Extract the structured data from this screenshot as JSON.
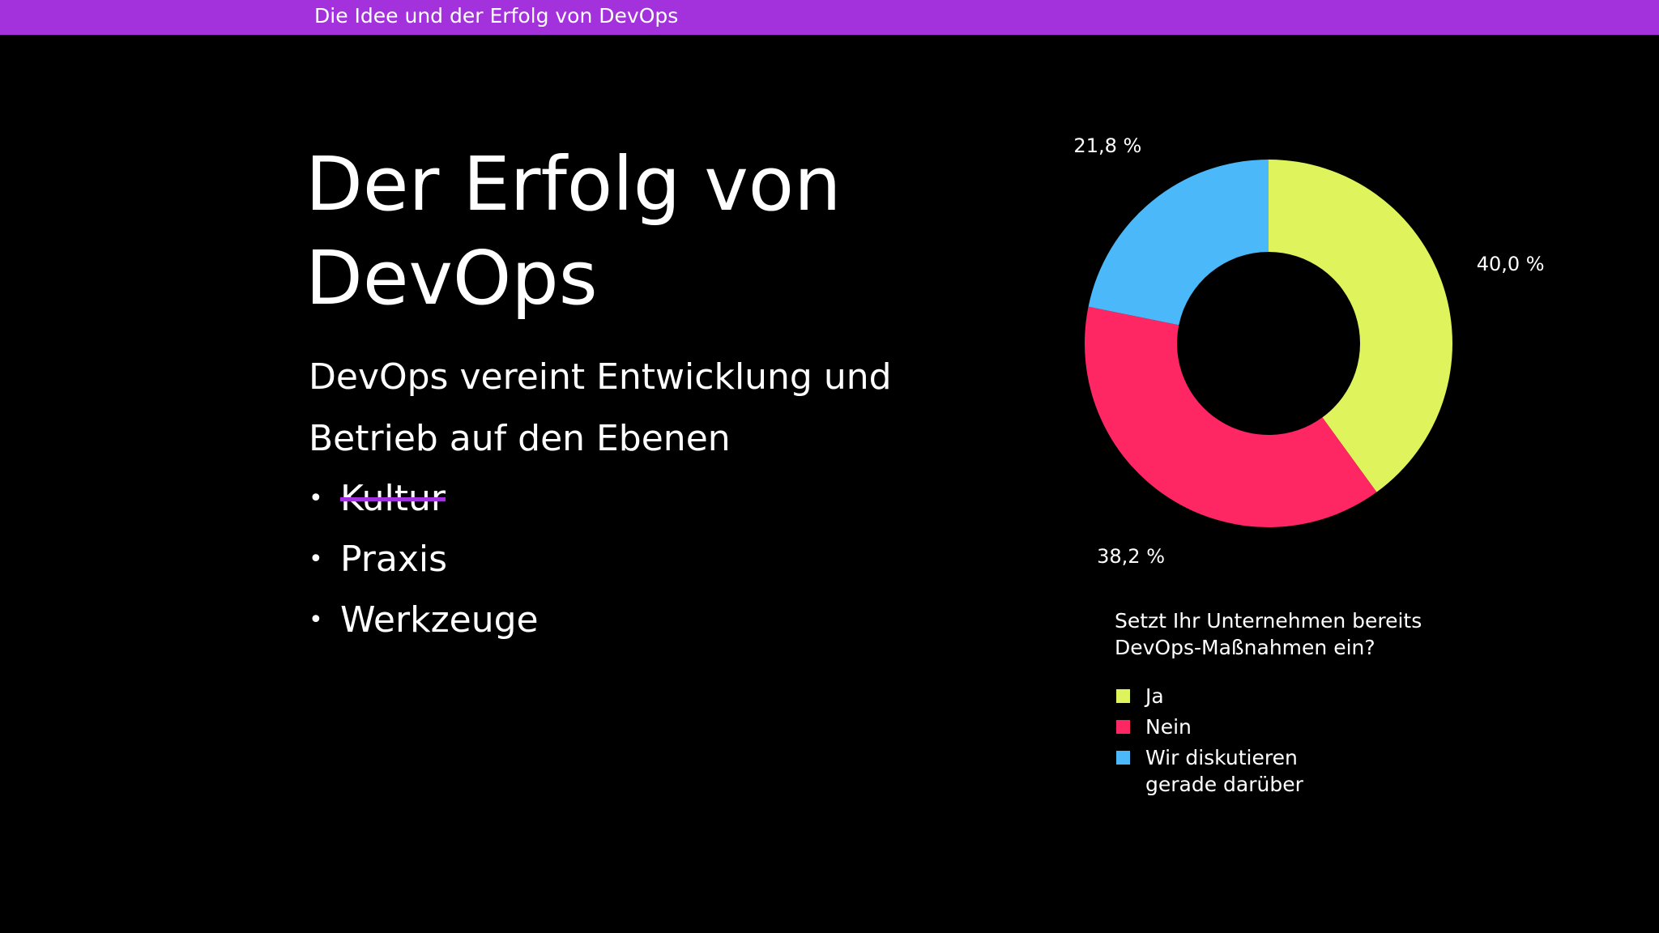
{
  "header": {
    "title": "Die Idee und der Erfolg von DevOps",
    "color": "#a432dc"
  },
  "main": {
    "headline_line1": "Der Erfolg von",
    "headline_line2": "DevOps",
    "subtitle_line1": "DevOps vereint Entwicklung und",
    "subtitle_line2": "Betrieb  auf den Ebenen",
    "bullets": [
      {
        "label": "Kultur",
        "struck": true
      },
      {
        "label": "Praxis",
        "struck": false
      },
      {
        "label": "Werkzeuge",
        "struck": false
      }
    ],
    "bullet_glyph": "•"
  },
  "chart_data": {
    "type": "pie",
    "donut": true,
    "title": "Setzt Ihr Unternehmen bereits DevOps-Maßnahmen ein?",
    "title_line1": "Setzt Ihr Unternehmen bereits",
    "title_line2": "DevOps-Maßnahmen ein?",
    "legend_position": "bottom",
    "slices": [
      {
        "label": "Ja",
        "label_line1": "Ja",
        "label_line2": "",
        "value": 40.0,
        "value_label": "40,0 %",
        "color": "#dff35c"
      },
      {
        "label": "Nein",
        "label_line1": "Nein",
        "label_line2": "",
        "value": 38.2,
        "value_label": "38,2 %",
        "color": "#fe2663"
      },
      {
        "label": "Wir diskutieren gerade darüber",
        "label_line1": "Wir diskutieren",
        "label_line2": "gerade darüber",
        "value": 21.8,
        "value_label": "21,8 %",
        "color": "#4bb8f9"
      }
    ]
  }
}
